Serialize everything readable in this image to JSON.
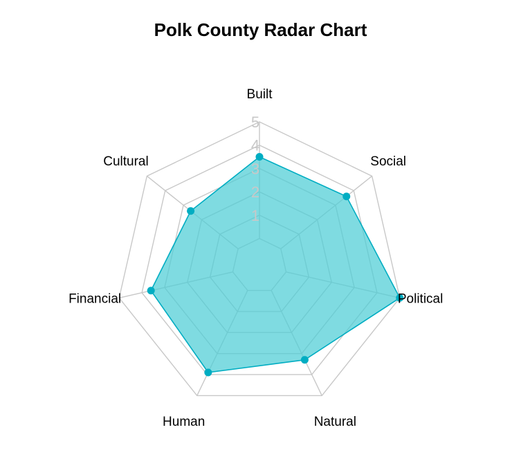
{
  "chart_data": {
    "type": "radar",
    "title": "Polk County Radar Chart",
    "axes": [
      "Built",
      "Social",
      "Political",
      "Natural",
      "Human",
      "Financial",
      "Cultural"
    ],
    "series": [
      {
        "values": [
          3.5,
          3.6,
          5.0,
          3.3,
          3.9,
          3.6,
          2.6
        ]
      }
    ],
    "range": [
      0,
      5
    ],
    "ticks": [
      1,
      2,
      3,
      4,
      5
    ],
    "grid": true,
    "colors": {
      "fill": "#4ECDD6",
      "line": "#00ADC2",
      "grid": "#C8C8C8",
      "tick": "#C8C8C8"
    }
  }
}
